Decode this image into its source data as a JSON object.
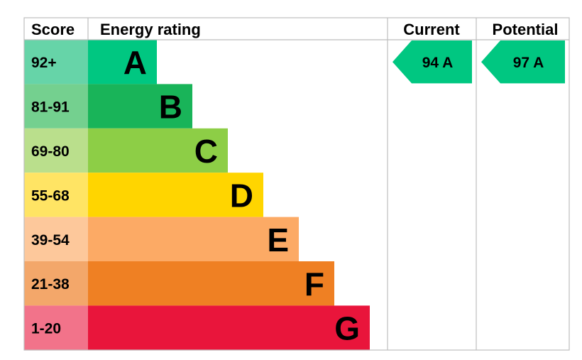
{
  "chart_data": {
    "type": "bar",
    "headers": {
      "score": "Score",
      "rating": "Energy rating",
      "current": "Current",
      "potential": "Potential"
    },
    "bands": [
      {
        "letter": "A",
        "range": "92+",
        "color": "#00c781",
        "score_color": "#66d4a8"
      },
      {
        "letter": "B",
        "range": "81-91",
        "color": "#19b459",
        "score_color": "#74d08f"
      },
      {
        "letter": "C",
        "range": "69-80",
        "color": "#8dce46",
        "score_color": "#badf8c"
      },
      {
        "letter": "D",
        "range": "55-68",
        "color": "#ffd500",
        "score_color": "#ffe464"
      },
      {
        "letter": "E",
        "range": "39-54",
        "color": "#fcaa65",
        "score_color": "#fdc89b"
      },
      {
        "letter": "F",
        "range": "21-38",
        "color": "#ef8023",
        "score_color": "#f3a76a"
      },
      {
        "letter": "G",
        "range": "1-20",
        "color": "#e9153b",
        "score_color": "#f2738a"
      }
    ],
    "current": {
      "score": 94,
      "band": "A",
      "label": "94  A",
      "color": "#00c781"
    },
    "potential": {
      "score": 97,
      "band": "A",
      "label": "97  A",
      "color": "#00c781"
    }
  }
}
